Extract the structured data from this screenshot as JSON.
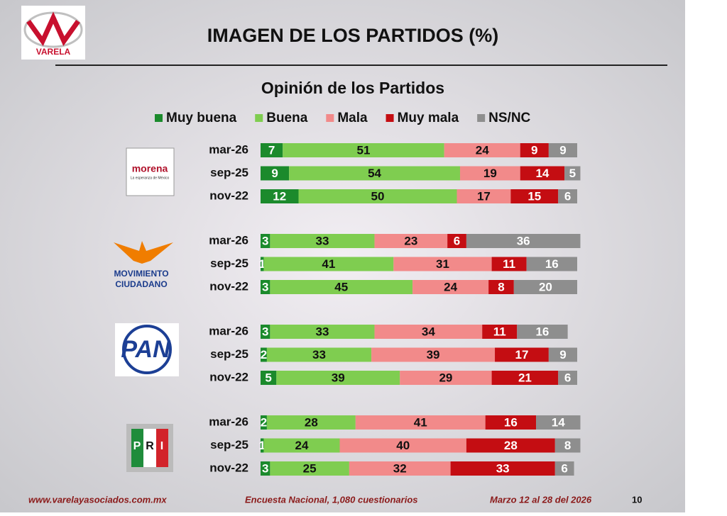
{
  "header": {
    "logo": "VARELA",
    "title": "IMAGEN DE LOS PARTIDOS (%)"
  },
  "parties": [
    {
      "name": "morena",
      "tagline": "La esperanza de México"
    },
    {
      "name": [
        "MOVIMIENTO",
        "CIUDADANO"
      ]
    },
    {
      "name": "PAN"
    },
    {
      "name": [
        "P",
        "R",
        "I"
      ]
    }
  ],
  "chart_data": {
    "type": "bar",
    "orientation": "horizontal",
    "stacked": true,
    "title": "Opinión de los Partidos",
    "categories": [
      "mar-26",
      "sep-25",
      "nov-22",
      "mar-26",
      "sep-25",
      "nov-22",
      "mar-26",
      "sep-25",
      "nov-22",
      "mar-26",
      "sep-25",
      "nov-22"
    ],
    "series": [
      {
        "name": "Muy buena",
        "color": "#1b8a2c",
        "label_color": "#ffffff",
        "values": [
          7,
          9,
          12,
          3,
          1,
          3,
          3,
          2,
          5,
          2,
          1,
          3
        ]
      },
      {
        "name": "Buena",
        "color": "#7fcd50",
        "label_color": "#111111",
        "values": [
          51,
          54,
          50,
          33,
          41,
          45,
          33,
          33,
          39,
          28,
          24,
          25
        ]
      },
      {
        "name": "Mala",
        "color": "#f28a8a",
        "label_color": "#111111",
        "values": [
          24,
          19,
          17,
          23,
          31,
          24,
          34,
          39,
          29,
          41,
          40,
          32
        ]
      },
      {
        "name": "Muy mala",
        "color": "#c40d12",
        "label_color": "#ffffff",
        "values": [
          9,
          14,
          15,
          6,
          11,
          8,
          11,
          17,
          21,
          16,
          28,
          33
        ]
      },
      {
        "name": "NS/NC",
        "color": "#8e8e8e",
        "label_color": "#ffffff",
        "values": [
          9,
          5,
          6,
          36,
          16,
          20,
          16,
          9,
          6,
          14,
          8,
          6
        ]
      }
    ]
  },
  "footer": {
    "website": "www.varelayasociados.com.mx",
    "survey": "Encuesta Nacional, 1,080 cuestionarios",
    "dates": "Marzo 12 al 28 del 2026",
    "page": "10"
  }
}
